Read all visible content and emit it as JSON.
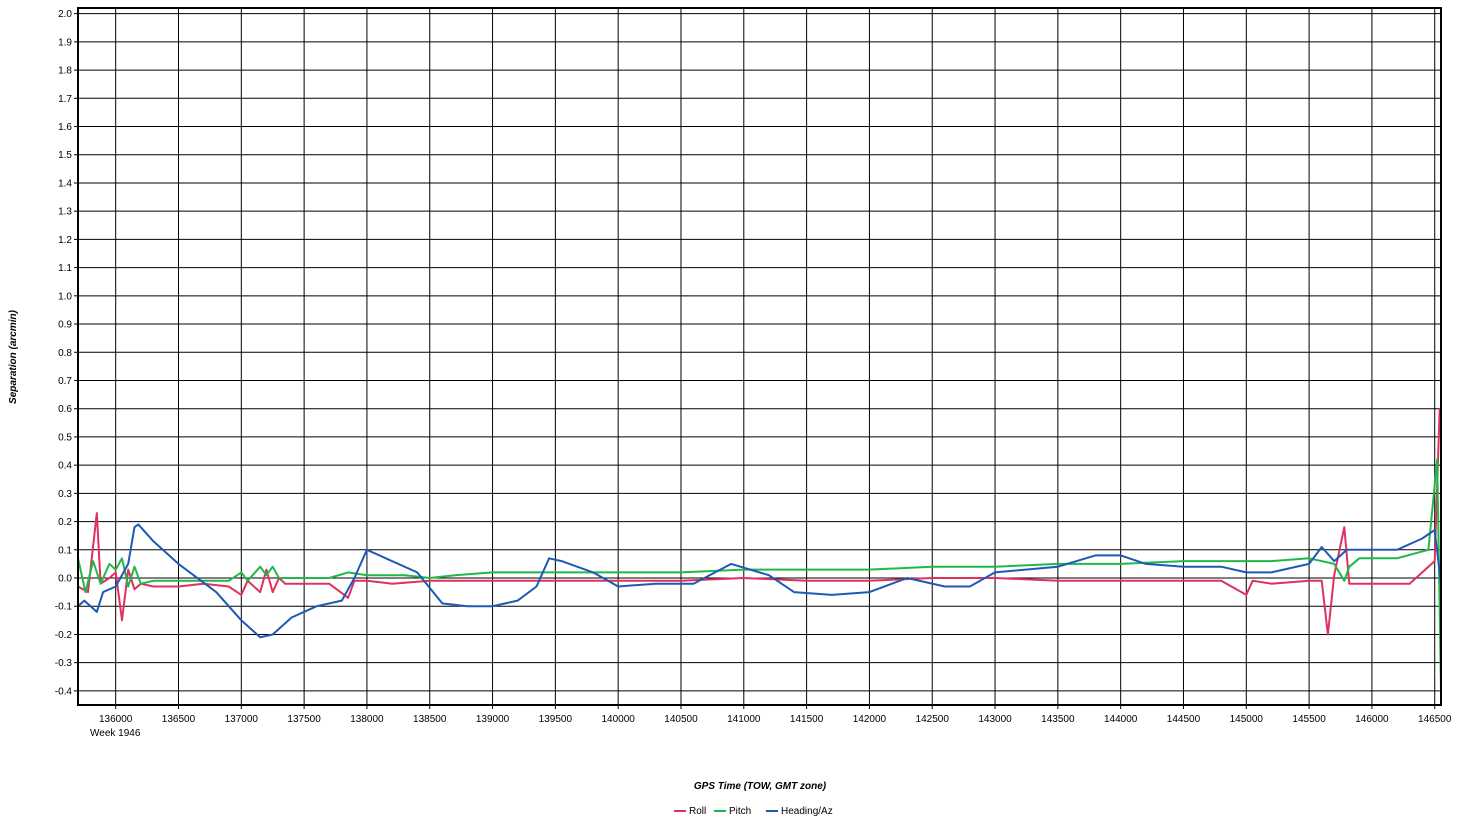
{
  "chart_data": {
    "type": "line",
    "title": "",
    "xlabel": "GPS Time (TOW, GMT zone)",
    "ylabel": "Separation (arcmin)",
    "x_sublabel": "Week 1946",
    "xlim": [
      135700,
      146550
    ],
    "ylim": [
      -0.45,
      2.02
    ],
    "x_ticks": [
      136000,
      136500,
      137000,
      137500,
      138000,
      138500,
      139000,
      139500,
      140000,
      140500,
      141000,
      141500,
      142000,
      142500,
      143000,
      143500,
      144000,
      144500,
      145000,
      145500,
      146000,
      146500
    ],
    "y_ticks": [
      2.0,
      1.9,
      1.8,
      1.7,
      1.6,
      1.5,
      1.4,
      1.3,
      1.2,
      1.1,
      1.0,
      0.9,
      0.8,
      0.7,
      0.6,
      0.5,
      0.4,
      0.3,
      0.2,
      0.1,
      0.0,
      -0.1,
      -0.2,
      -0.3,
      -0.4
    ],
    "grid": true,
    "legend_position": "bottom-center",
    "series": [
      {
        "name": "Roll",
        "color": "#e0305e",
        "points": [
          [
            135700,
            -0.03
          ],
          [
            135780,
            -0.05
          ],
          [
            135850,
            0.23
          ],
          [
            135880,
            -0.02
          ],
          [
            135950,
            0.0
          ],
          [
            136000,
            0.02
          ],
          [
            136050,
            -0.15
          ],
          [
            136100,
            0.03
          ],
          [
            136150,
            -0.04
          ],
          [
            136200,
            -0.02
          ],
          [
            136300,
            -0.03
          ],
          [
            136500,
            -0.03
          ],
          [
            136700,
            -0.02
          ],
          [
            136900,
            -0.03
          ],
          [
            137000,
            -0.06
          ],
          [
            137050,
            -0.01
          ],
          [
            137150,
            -0.05
          ],
          [
            137200,
            0.03
          ],
          [
            137250,
            -0.05
          ],
          [
            137300,
            0.0
          ],
          [
            137350,
            -0.02
          ],
          [
            137500,
            -0.02
          ],
          [
            137700,
            -0.02
          ],
          [
            137850,
            -0.07
          ],
          [
            137900,
            -0.01
          ],
          [
            138000,
            -0.01
          ],
          [
            138200,
            -0.02
          ],
          [
            138500,
            -0.01
          ],
          [
            138700,
            -0.01
          ],
          [
            139000,
            -0.01
          ],
          [
            139500,
            -0.01
          ],
          [
            140000,
            -0.01
          ],
          [
            140500,
            -0.01
          ],
          [
            141000,
            0.0
          ],
          [
            141500,
            -0.01
          ],
          [
            142000,
            -0.01
          ],
          [
            142500,
            0.0
          ],
          [
            143000,
            0.0
          ],
          [
            143500,
            -0.01
          ],
          [
            144000,
            -0.01
          ],
          [
            144300,
            -0.01
          ],
          [
            144500,
            -0.01
          ],
          [
            144800,
            -0.01
          ],
          [
            145000,
            -0.06
          ],
          [
            145050,
            -0.01
          ],
          [
            145200,
            -0.02
          ],
          [
            145500,
            -0.01
          ],
          [
            145600,
            -0.01
          ],
          [
            145650,
            -0.2
          ],
          [
            145700,
            0.01
          ],
          [
            145780,
            0.18
          ],
          [
            145820,
            -0.02
          ],
          [
            146000,
            -0.02
          ],
          [
            146300,
            -0.02
          ],
          [
            146500,
            0.06
          ],
          [
            146540,
            0.6
          ]
        ]
      },
      {
        "name": "Pitch",
        "color": "#21b84a",
        "points": [
          [
            135700,
            0.07
          ],
          [
            135760,
            -0.05
          ],
          [
            135820,
            0.06
          ],
          [
            135880,
            -0.02
          ],
          [
            135950,
            0.05
          ],
          [
            136000,
            0.03
          ],
          [
            136050,
            0.07
          ],
          [
            136100,
            -0.03
          ],
          [
            136150,
            0.04
          ],
          [
            136200,
            -0.02
          ],
          [
            136300,
            -0.01
          ],
          [
            136500,
            -0.01
          ],
          [
            136700,
            -0.01
          ],
          [
            136900,
            -0.01
          ],
          [
            137000,
            0.02
          ],
          [
            137050,
            -0.01
          ],
          [
            137150,
            0.04
          ],
          [
            137200,
            0.01
          ],
          [
            137250,
            0.04
          ],
          [
            137300,
            0.0
          ],
          [
            137500,
            0.0
          ],
          [
            137700,
            0.0
          ],
          [
            137850,
            0.02
          ],
          [
            138000,
            0.01
          ],
          [
            138300,
            0.01
          ],
          [
            138500,
            0.0
          ],
          [
            138700,
            0.01
          ],
          [
            139000,
            0.02
          ],
          [
            139500,
            0.02
          ],
          [
            140000,
            0.02
          ],
          [
            140500,
            0.02
          ],
          [
            141000,
            0.03
          ],
          [
            141500,
            0.03
          ],
          [
            142000,
            0.03
          ],
          [
            142500,
            0.04
          ],
          [
            143000,
            0.04
          ],
          [
            143500,
            0.05
          ],
          [
            144000,
            0.05
          ],
          [
            144500,
            0.06
          ],
          [
            145000,
            0.06
          ],
          [
            145200,
            0.06
          ],
          [
            145500,
            0.07
          ],
          [
            145700,
            0.05
          ],
          [
            145780,
            -0.01
          ],
          [
            145820,
            0.04
          ],
          [
            145900,
            0.07
          ],
          [
            146200,
            0.07
          ],
          [
            146450,
            0.1
          ],
          [
            146520,
            0.42
          ],
          [
            146550,
            -0.4
          ]
        ]
      },
      {
        "name": "Heading/Az",
        "color": "#1d5ab4",
        "points": [
          [
            135700,
            -0.1
          ],
          [
            135750,
            -0.08
          ],
          [
            135800,
            -0.1
          ],
          [
            135850,
            -0.12
          ],
          [
            135900,
            -0.05
          ],
          [
            136000,
            -0.03
          ],
          [
            136100,
            0.05
          ],
          [
            136150,
            0.18
          ],
          [
            136180,
            0.19
          ],
          [
            136300,
            0.13
          ],
          [
            136500,
            0.05
          ],
          [
            136800,
            -0.05
          ],
          [
            137000,
            -0.15
          ],
          [
            137150,
            -0.21
          ],
          [
            137250,
            -0.2
          ],
          [
            137400,
            -0.14
          ],
          [
            137600,
            -0.1
          ],
          [
            137800,
            -0.08
          ],
          [
            137900,
            0.0
          ],
          [
            138000,
            0.1
          ],
          [
            138150,
            0.07
          ],
          [
            138400,
            0.02
          ],
          [
            138600,
            -0.09
          ],
          [
            138800,
            -0.1
          ],
          [
            139000,
            -0.1
          ],
          [
            139200,
            -0.08
          ],
          [
            139350,
            -0.03
          ],
          [
            139450,
            0.07
          ],
          [
            139550,
            0.06
          ],
          [
            139800,
            0.02
          ],
          [
            140000,
            -0.03
          ],
          [
            140300,
            -0.02
          ],
          [
            140600,
            -0.02
          ],
          [
            140900,
            0.05
          ],
          [
            141200,
            0.01
          ],
          [
            141400,
            -0.05
          ],
          [
            141700,
            -0.06
          ],
          [
            142000,
            -0.05
          ],
          [
            142300,
            0.0
          ],
          [
            142600,
            -0.03
          ],
          [
            142800,
            -0.03
          ],
          [
            143000,
            0.02
          ],
          [
            143500,
            0.04
          ],
          [
            143800,
            0.08
          ],
          [
            144000,
            0.08
          ],
          [
            144200,
            0.05
          ],
          [
            144500,
            0.04
          ],
          [
            144800,
            0.04
          ],
          [
            145000,
            0.02
          ],
          [
            145200,
            0.02
          ],
          [
            145500,
            0.05
          ],
          [
            145600,
            0.11
          ],
          [
            145700,
            0.06
          ],
          [
            145800,
            0.1
          ],
          [
            146000,
            0.1
          ],
          [
            146200,
            0.1
          ],
          [
            146400,
            0.14
          ],
          [
            146500,
            0.17
          ],
          [
            146550,
            -0.02
          ]
        ]
      }
    ]
  }
}
